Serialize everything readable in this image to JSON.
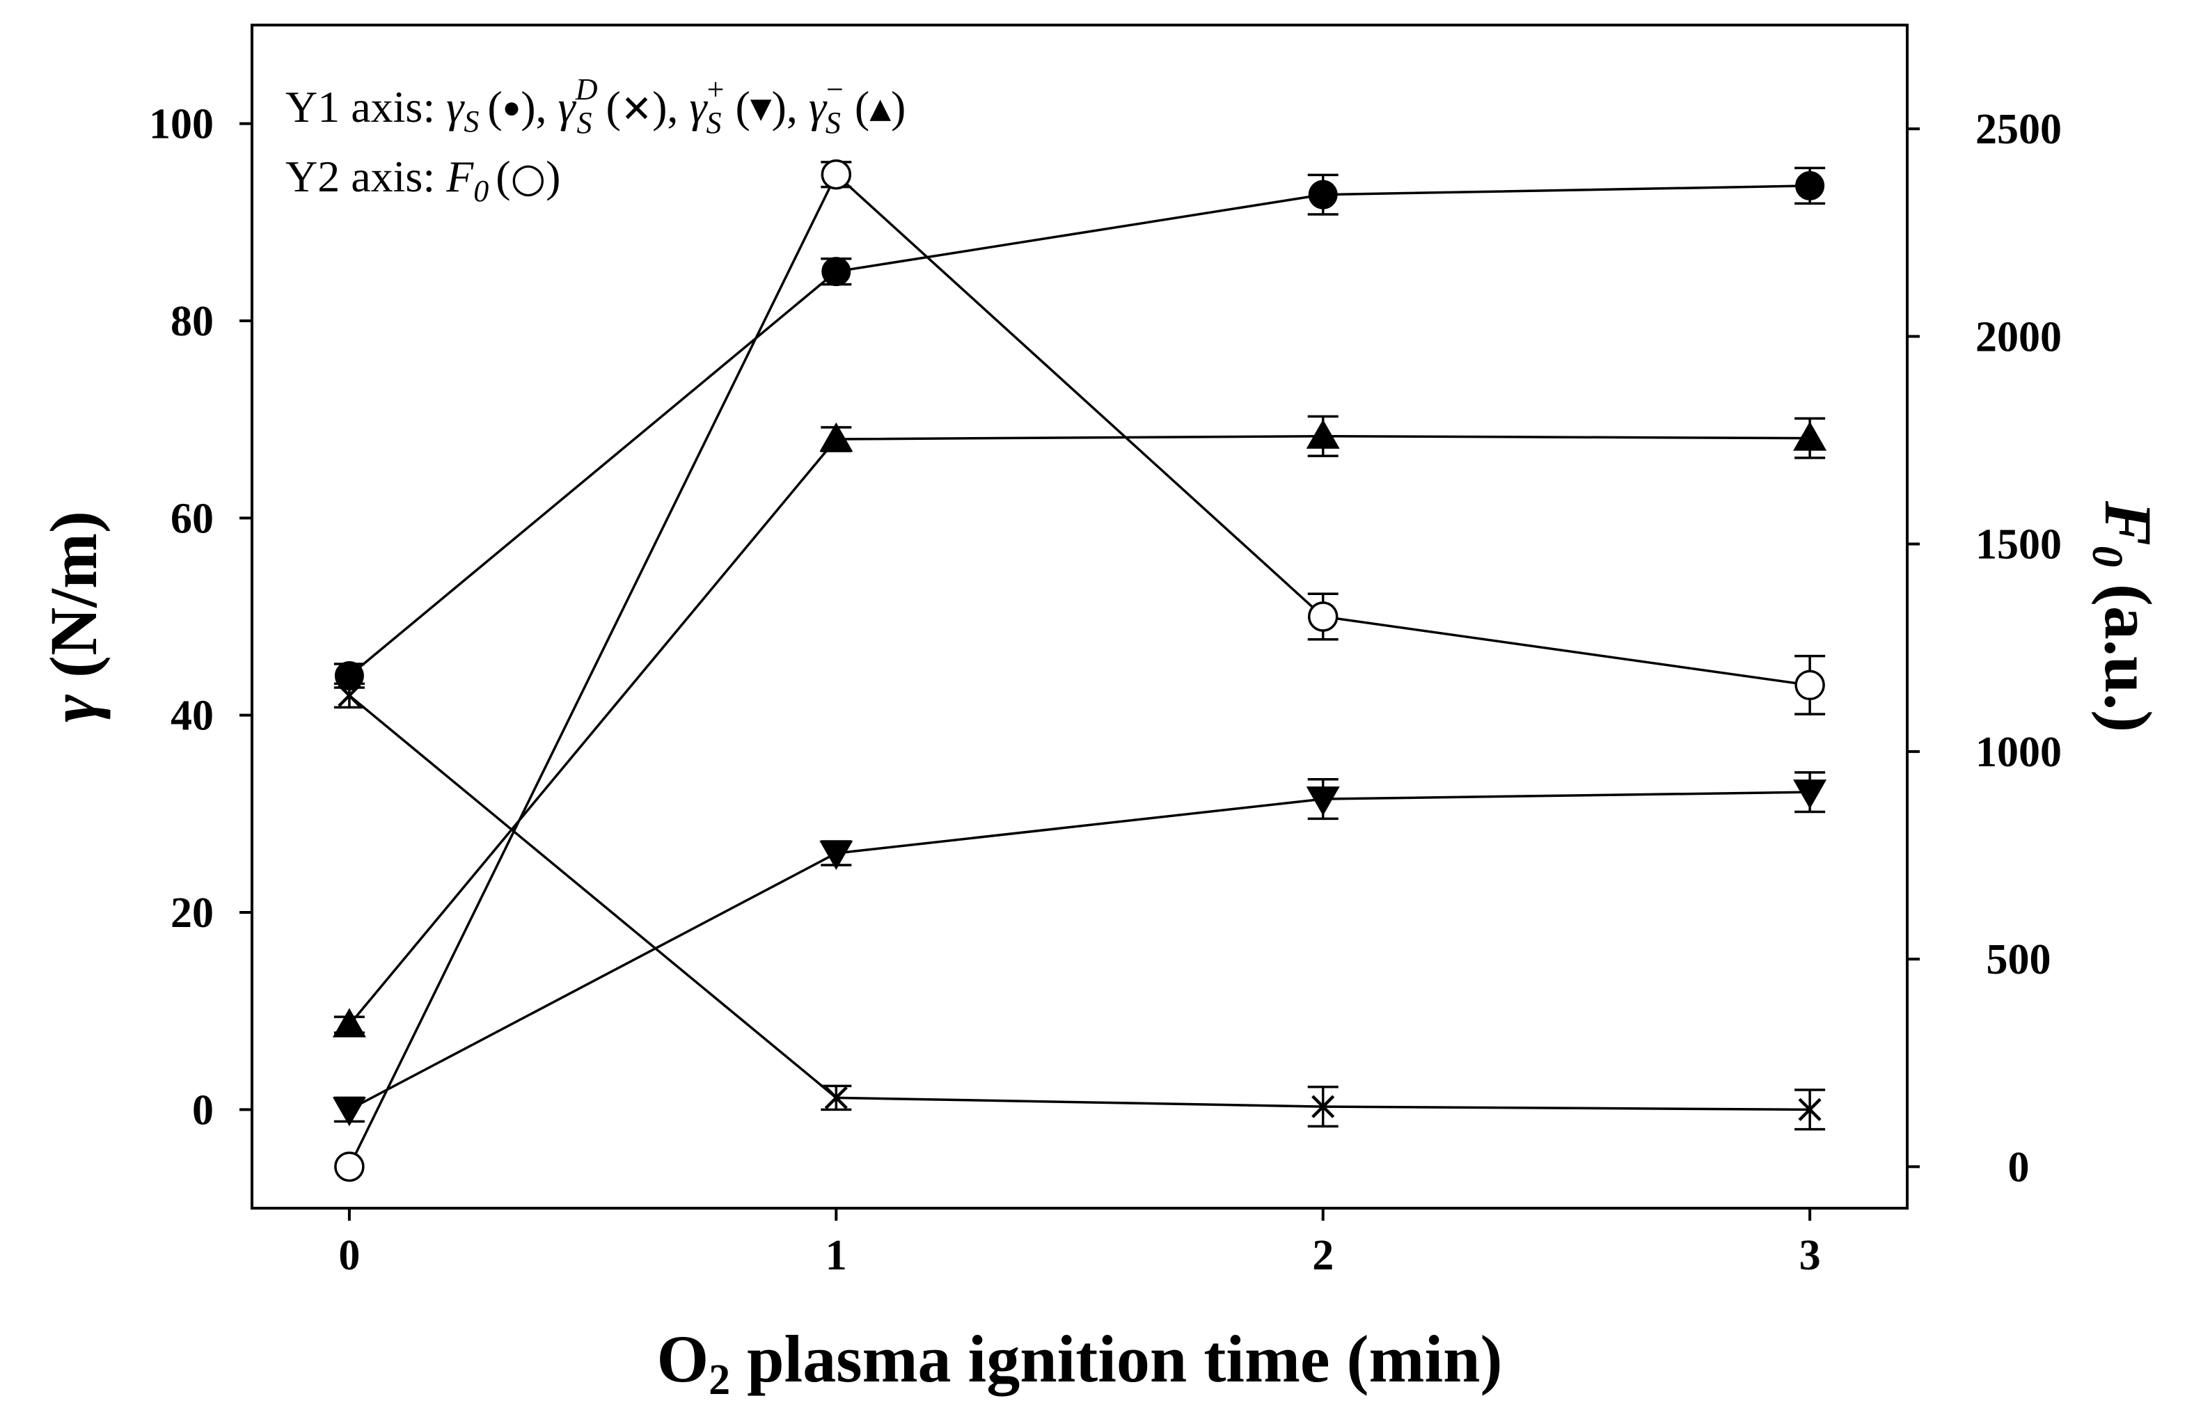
{
  "chart_data": {
    "type": "line",
    "xlabel_main": "O",
    "xlabel_sub": "2",
    "xlabel_rest": " plasma ignition time (min)",
    "y1label_symbol": "γ",
    "y1label_rest": " (N/m)",
    "y2label_symbol": "F",
    "y2label_sub": "0",
    "y2label_rest": " (a.u.)",
    "x": [
      0,
      1,
      2,
      3
    ],
    "xticks": [
      "0",
      "1",
      "2",
      "3"
    ],
    "xlim": [
      -0.2,
      3.2
    ],
    "y1lim": [
      -10,
      110
    ],
    "y1ticks": [
      "0",
      "20",
      "40",
      "60",
      "80",
      "100"
    ],
    "y2lim": [
      -100,
      2750
    ],
    "y2ticks": [
      "0",
      "500",
      "1000",
      "1500",
      "2000",
      "2500"
    ],
    "legend": {
      "line1_prefix": "Y1 axis: ",
      "line2_prefix": "Y2 axis: ",
      "gamma_symbol": "γ",
      "sub_s": "S",
      "sup_d": "D",
      "sup_plus": "+",
      "sup_minus": "−",
      "mark_dot": "●",
      "mark_cross": "✕",
      "mark_down": "▼",
      "mark_up": "▲",
      "mark_open": "○",
      "f0_symbol": "F",
      "f0_sub": "0",
      "open_paren": "(",
      "close_paren": ")",
      "sep": ", "
    },
    "series": [
      {
        "axis": "y1",
        "marker": "filled-circle",
        "values": [
          44,
          85,
          92.8,
          93.7
        ],
        "errors": [
          1.2,
          1.3,
          2.0,
          1.8
        ]
      },
      {
        "axis": "y1",
        "marker": "cross",
        "values": [
          42,
          1.2,
          0.3,
          0
        ],
        "errors": [
          1.2,
          1.2,
          2.0,
          2.0
        ]
      },
      {
        "axis": "y1",
        "marker": "triangle-down",
        "values": [
          0,
          26,
          31.5,
          32.2
        ],
        "errors": [
          1.2,
          1.2,
          2.0,
          2.0
        ]
      },
      {
        "axis": "y1",
        "marker": "triangle-up",
        "values": [
          8.6,
          68,
          68.3,
          68.1
        ],
        "errors": [
          0.8,
          1.2,
          2.0,
          2.0
        ]
      },
      {
        "axis": "y2",
        "marker": "open-circle",
        "values": [
          0,
          2390,
          1325,
          1160
        ],
        "errors": [
          0,
          30,
          55,
          70
        ]
      }
    ]
  }
}
